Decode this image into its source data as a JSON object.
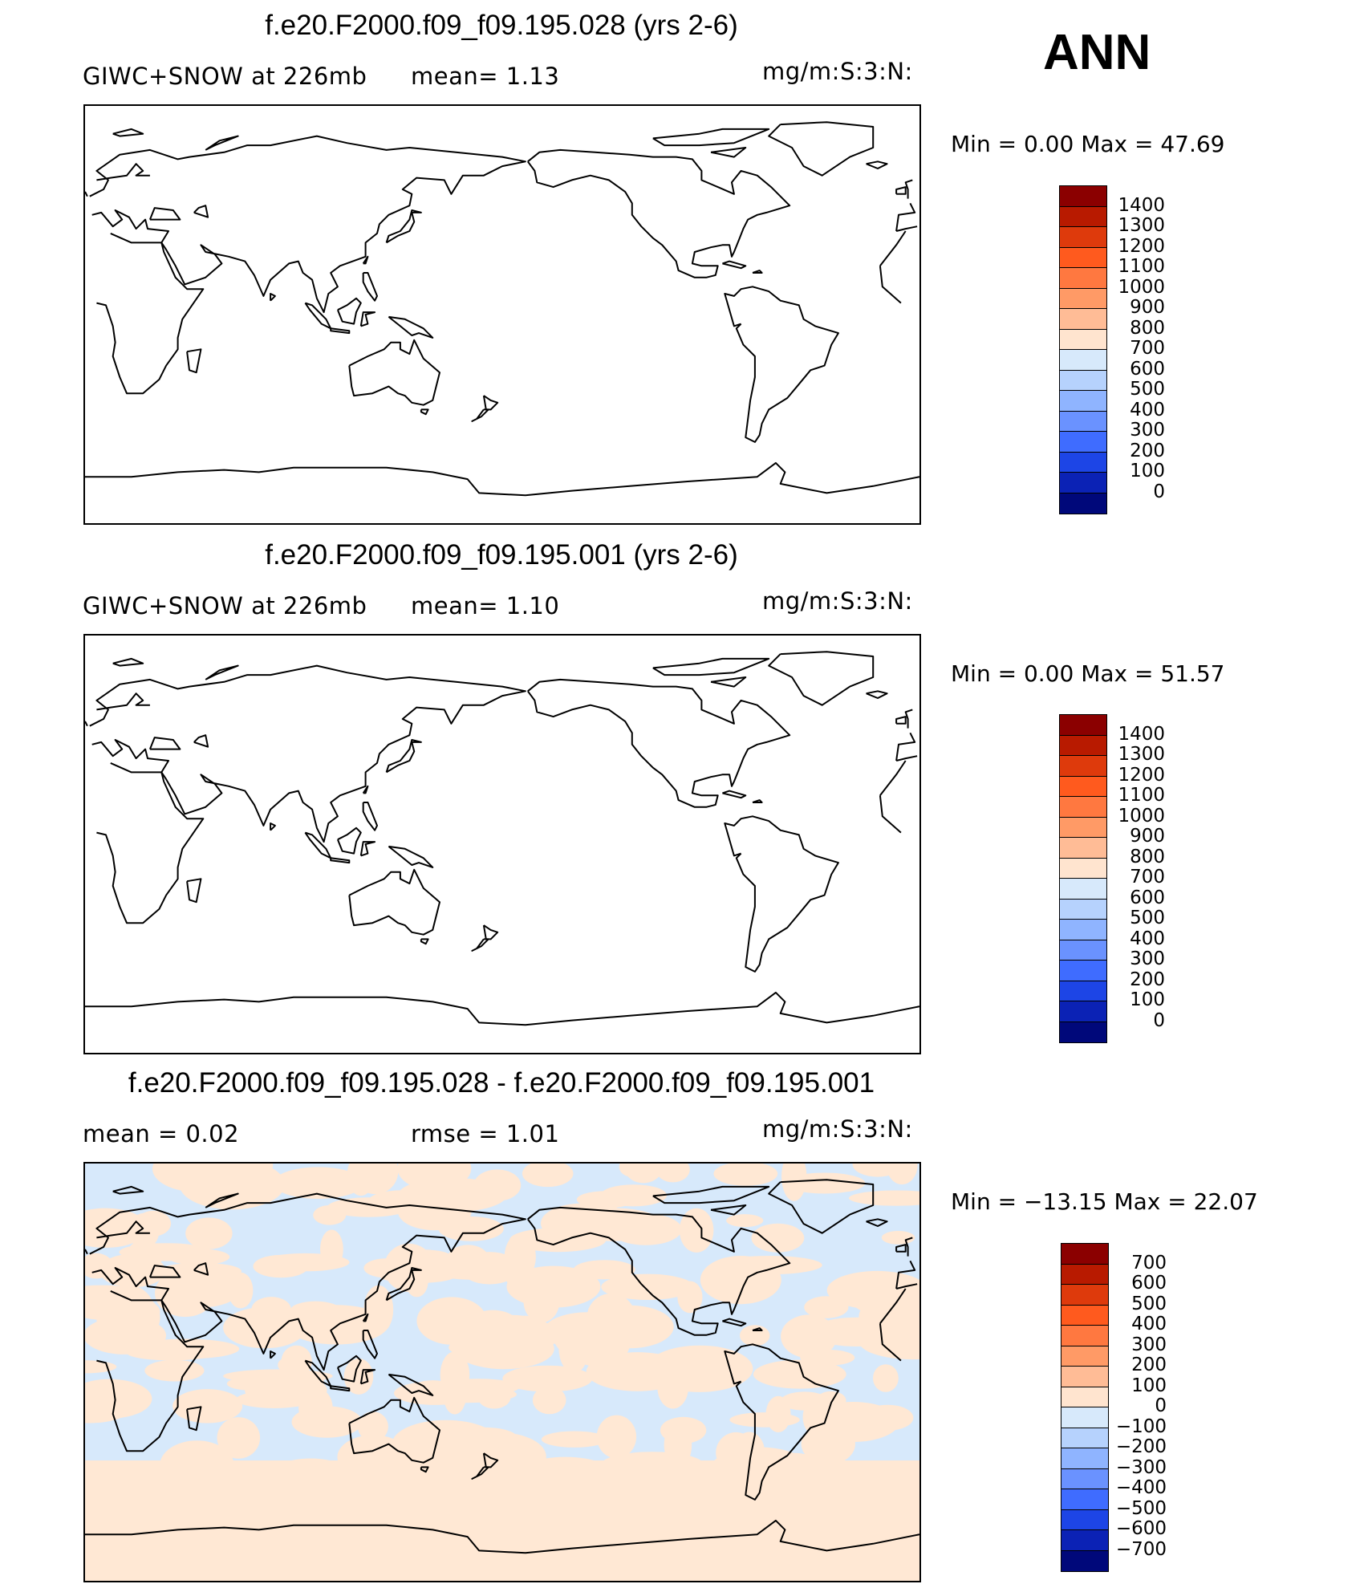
{
  "header": {
    "season": "ANN"
  },
  "panels": [
    {
      "title": "f.e20.F2000.f09_f09.195.028 (yrs 2-6)",
      "left_text": "GIWC+SNOW at 226mb",
      "mid_text": "mean=    1.13",
      "units": "mg/m:S:3:N:",
      "minmax": "Min =    0.00 Max =   47.69",
      "colorbar": {
        "labels": [
          "1400",
          "1300",
          "1200",
          "1100",
          "1000",
          "900",
          "800",
          "700",
          "600",
          "500",
          "400",
          "300",
          "200",
          "100",
          "0"
        ],
        "colors": [
          "#8b0000",
          "#b81a00",
          "#de3a0c",
          "#ff5a1e",
          "#ff7840",
          "#ff9a66",
          "#ffbc96",
          "#ffe4cf",
          "#d7e9fb",
          "#b6d2fd",
          "#8fb4ff",
          "#6a92ff",
          "#3f6cff",
          "#1d45e6",
          "#0b22b5",
          "#00087a"
        ]
      },
      "shading": "none"
    },
    {
      "title": "f.e20.F2000.f09_f09.195.001 (yrs 2-6)",
      "left_text": "GIWC+SNOW at 226mb",
      "mid_text": "mean=    1.10",
      "units": "mg/m:S:3:N:",
      "minmax": "Min =    0.00 Max =   51.57",
      "colorbar": {
        "labels": [
          "1400",
          "1300",
          "1200",
          "1100",
          "1000",
          "900",
          "800",
          "700",
          "600",
          "500",
          "400",
          "300",
          "200",
          "100",
          "0"
        ],
        "colors": [
          "#8b0000",
          "#b81a00",
          "#de3a0c",
          "#ff5a1e",
          "#ff7840",
          "#ff9a66",
          "#ffbc96",
          "#ffe4cf",
          "#d7e9fb",
          "#b6d2fd",
          "#8fb4ff",
          "#6a92ff",
          "#3f6cff",
          "#1d45e6",
          "#0b22b5",
          "#00087a"
        ]
      },
      "shading": "none"
    },
    {
      "title": "f.e20.F2000.f09_f09.195.028 - f.e20.F2000.f09_f09.195.001",
      "left_text": "mean =    0.02",
      "mid_text": "rmse =    1.01",
      "units": "mg/m:S:3:N:",
      "minmax": "Min = −13.15 Max =   22.07",
      "colorbar": {
        "labels": [
          "700",
          "600",
          "500",
          "400",
          "300",
          "200",
          "100",
          "0",
          "−100",
          "−200",
          "−300",
          "−400",
          "−500",
          "−600",
          "−700"
        ],
        "colors": [
          "#8b0000",
          "#b81a00",
          "#de3a0c",
          "#ff5a1e",
          "#ff7840",
          "#ff9a66",
          "#ffbc96",
          "#ffe4cf",
          "#d7e9fb",
          "#b6d2fd",
          "#8fb4ff",
          "#6a92ff",
          "#3f6cff",
          "#1d45e6",
          "#0b22b5",
          "#00087a"
        ]
      },
      "shading": "difference",
      "shading_colors": {
        "positive": "#ffe8d4",
        "negative": "#d7e9fb"
      }
    }
  ]
}
